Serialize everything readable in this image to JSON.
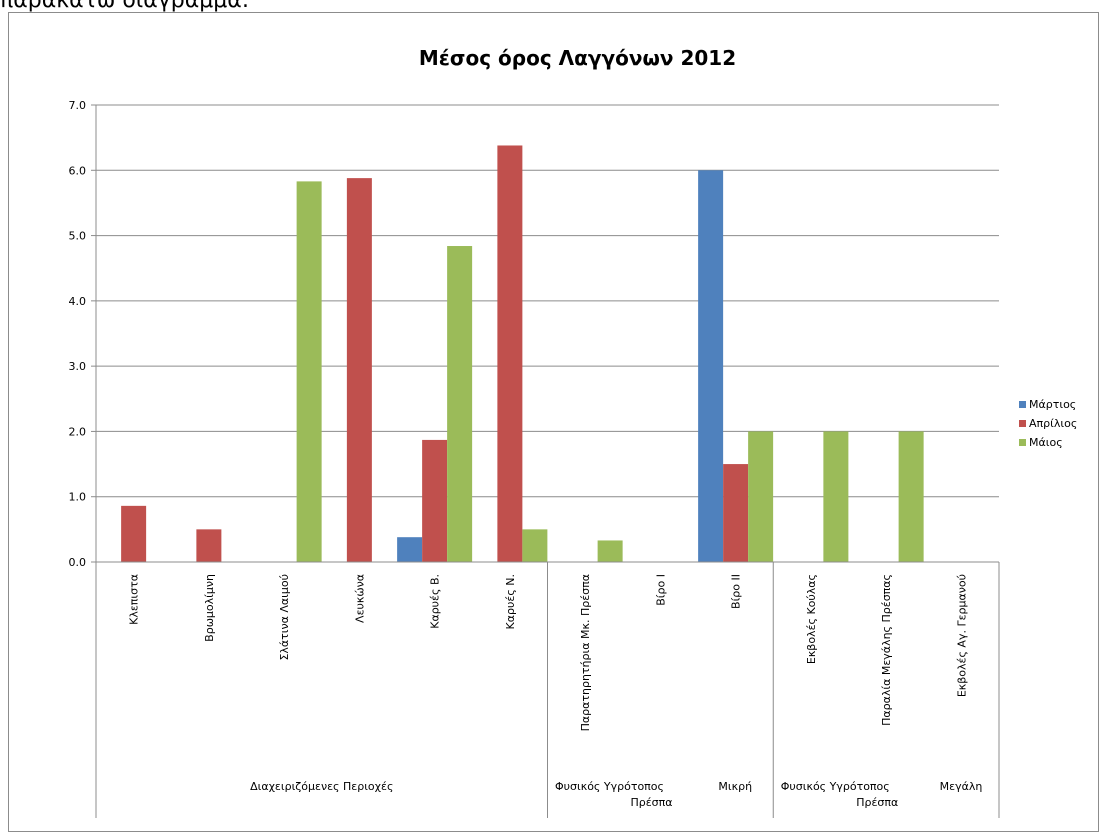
{
  "page": {
    "intro_text": "παρακάτω διάγραμμα:"
  },
  "chart_data": {
    "type": "bar",
    "title": "Μέσος όρος Λαγγόνων 2012",
    "xlabel": "",
    "ylabel": "",
    "ylim": [
      0,
      7
    ],
    "y_ticks": [
      "0.0",
      "1.0",
      "2.0",
      "3.0",
      "4.0",
      "5.0",
      "6.0",
      "7.0"
    ],
    "grid": true,
    "legend_position": "right",
    "categories": [
      "Κλεπιστα",
      "Βρωμολίμνη",
      "Σλάτινα Λαιμού",
      "Λευκώνα",
      "Καρυές Β.",
      "Καρυές Ν.",
      "Παρατηρητήρια Μκ. Πρέσπα",
      "Βίρο Ι",
      "Βίρο ΙΙ",
      "Εκβολές Κούλας",
      "Παραλία Μεγάλης Πρέσπας",
      "Εκβολές Αγ. Γερμανού"
    ],
    "groups": [
      {
        "label": "Διαχειριζόμενες Περιοχές",
        "label_lines": [
          "Διαχειριζόμενες Περιοχές"
        ],
        "count": 6
      },
      {
        "label": "Φυσικός Υγρότοπος Πρέσπα | Μικρή",
        "label_lines": [
          "Φυσικός Υγρότοπος",
          "Πρέσπα"
        ],
        "side_label": "Μικρή",
        "count": 3
      },
      {
        "label": "Φυσικός Υγρότοπος Πρέσπα | Μεγάλη",
        "label_lines": [
          "Φυσικός Υγρότοπος",
          "Πρέσπα"
        ],
        "side_label": "Μεγάλη",
        "count": 3
      }
    ],
    "series": [
      {
        "name": "Μάρτιος",
        "color": "#4f81bd",
        "values": [
          0,
          0,
          0,
          0,
          0.38,
          0,
          0,
          0,
          6.0,
          0,
          0,
          0
        ]
      },
      {
        "name": "Απρίλιος",
        "color": "#c0504d",
        "values": [
          0.86,
          0.5,
          0,
          5.88,
          1.87,
          6.38,
          0,
          0,
          1.5,
          0,
          0,
          0
        ]
      },
      {
        "name": "Μάιος",
        "color": "#9bbb59",
        "values": [
          0,
          0,
          5.83,
          0,
          4.84,
          0.5,
          0.33,
          0,
          2.0,
          2.0,
          2.0,
          0
        ]
      }
    ]
  }
}
